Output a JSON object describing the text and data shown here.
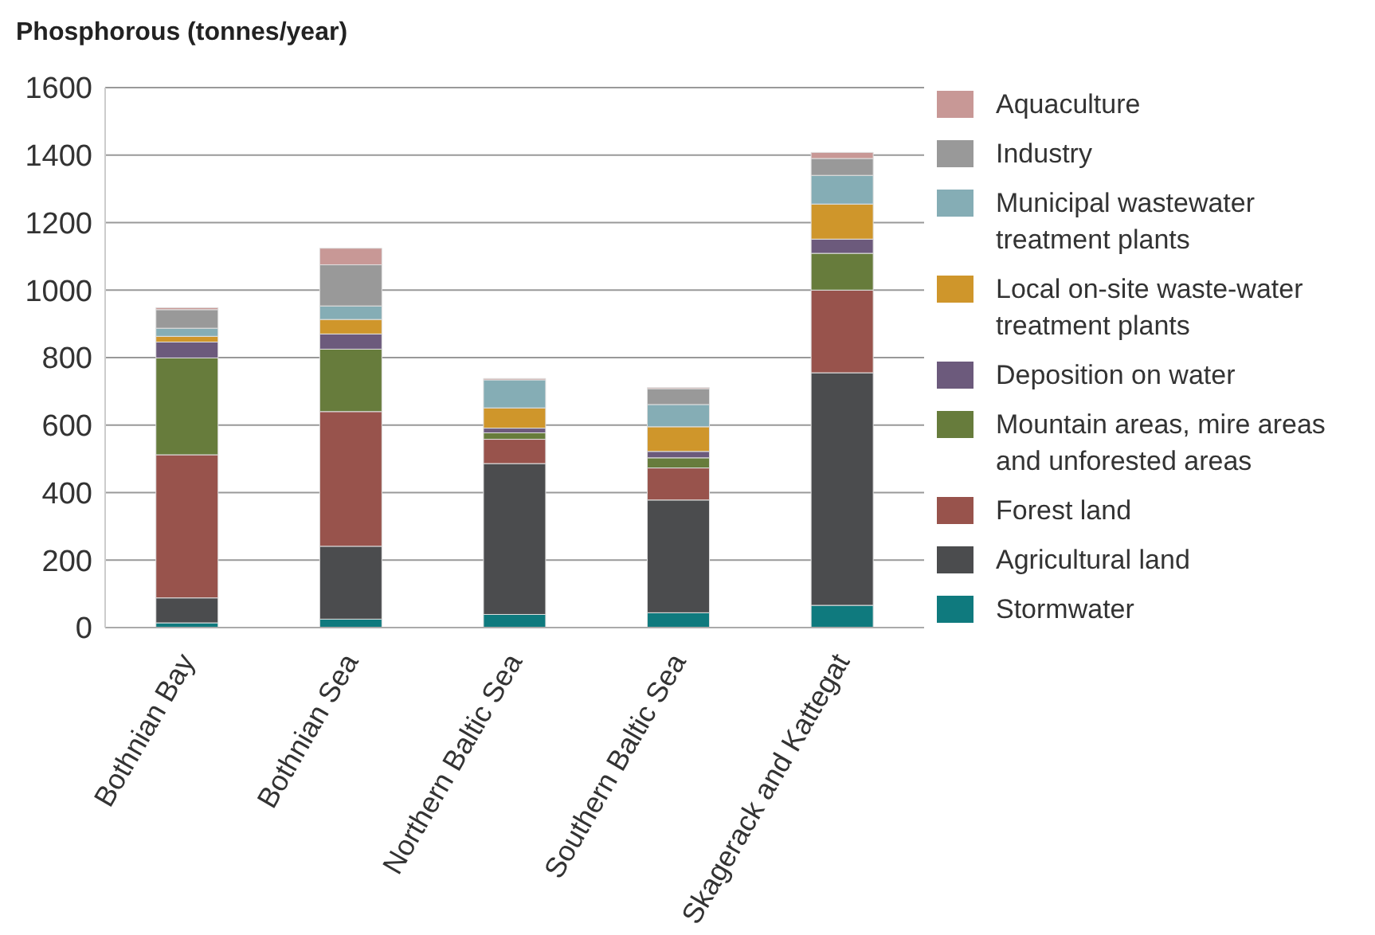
{
  "chart_data": {
    "type": "bar",
    "stacked": true,
    "ylabel": "Phosphorous (tonnes/year)",
    "categories": [
      "Bothnian Bay",
      "Bothnian Sea",
      "Northern Baltic Sea",
      "Southern Baltic Sea",
      "Skagerack and Kattegat"
    ],
    "ylim": [
      0,
      1600
    ],
    "yticks": [
      0,
      200,
      400,
      600,
      800,
      1000,
      1200,
      1400,
      1600
    ],
    "grid": "y",
    "legend": "right",
    "series": [
      {
        "name": "Stormwater",
        "color": "#0f7a7e",
        "values": [
          14,
          25,
          39,
          44,
          66
        ]
      },
      {
        "name": "Agricultural land",
        "color": "#4b4c4e",
        "values": [
          74,
          216,
          447,
          334,
          689
        ]
      },
      {
        "name": "Forest land",
        "color": "#98534c",
        "values": [
          424,
          399,
          72,
          95,
          245
        ]
      },
      {
        "name": "Mountain areas, mire areas and unforested areas",
        "color": "#677c3c",
        "values": [
          287,
          185,
          19,
          30,
          109
        ]
      },
      {
        "name": "Deposition on water",
        "color": "#6c5a7c",
        "values": [
          47,
          45,
          14,
          19,
          42
        ]
      },
      {
        "name": "Local on-site waste-water treatment plants",
        "color": "#cf962b",
        "values": [
          17,
          43,
          60,
          73,
          104
        ]
      },
      {
        "name": "Municipal wastewater treatment plants",
        "color": "#85adb5",
        "values": [
          24,
          40,
          83,
          66,
          85
        ]
      },
      {
        "name": "Industry",
        "color": "#999999",
        "values": [
          55,
          122,
          0,
          47,
          50
        ]
      },
      {
        "name": "Aquaculture",
        "color": "#c89896",
        "values": [
          6,
          49,
          4,
          3,
          18
        ]
      }
    ]
  }
}
